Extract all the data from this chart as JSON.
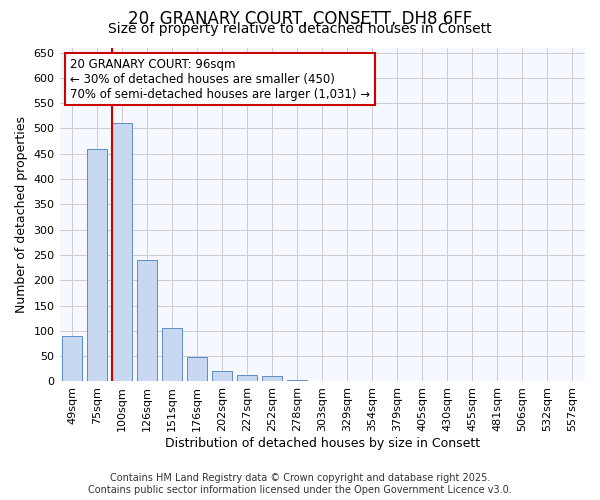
{
  "title_line1": "20, GRANARY COURT, CONSETT, DH8 6FF",
  "title_line2": "Size of property relative to detached houses in Consett",
  "xlabel": "Distribution of detached houses by size in Consett",
  "ylabel": "Number of detached properties",
  "categories": [
    "49sqm",
    "75sqm",
    "100sqm",
    "126sqm",
    "151sqm",
    "176sqm",
    "202sqm",
    "227sqm",
    "252sqm",
    "278sqm",
    "303sqm",
    "329sqm",
    "354sqm",
    "379sqm",
    "405sqm",
    "430sqm",
    "455sqm",
    "481sqm",
    "506sqm",
    "532sqm",
    "557sqm"
  ],
  "values": [
    90,
    460,
    510,
    240,
    105,
    48,
    20,
    13,
    10,
    2,
    0,
    0,
    0,
    0,
    0,
    0,
    0,
    0,
    0,
    0,
    0
  ],
  "bar_color": "#c8d8f0",
  "bar_edge_color": "#5b8cc8",
  "red_line_index": 2,
  "red_line_color": "#cc0000",
  "annotation_line1": "20 GRANARY COURT: 96sqm",
  "annotation_line2": "← 30% of detached houses are smaller (450)",
  "annotation_line3": "70% of semi-detached houses are larger (1,031) →",
  "annotation_box_color": "#cc0000",
  "annotation_bg_color": "#ffffff",
  "ylim": [
    0,
    660
  ],
  "yticks": [
    0,
    50,
    100,
    150,
    200,
    250,
    300,
    350,
    400,
    450,
    500,
    550,
    600,
    650
  ],
  "grid_color": "#cccccc",
  "bg_color": "#ffffff",
  "plot_bg_color": "#f5f8ff",
  "footer_line1": "Contains HM Land Registry data © Crown copyright and database right 2025.",
  "footer_line2": "Contains public sector information licensed under the Open Government Licence v3.0.",
  "title_fontsize": 12,
  "subtitle_fontsize": 10,
  "axis_label_fontsize": 9,
  "tick_fontsize": 8,
  "annotation_fontsize": 8.5,
  "footer_fontsize": 7
}
